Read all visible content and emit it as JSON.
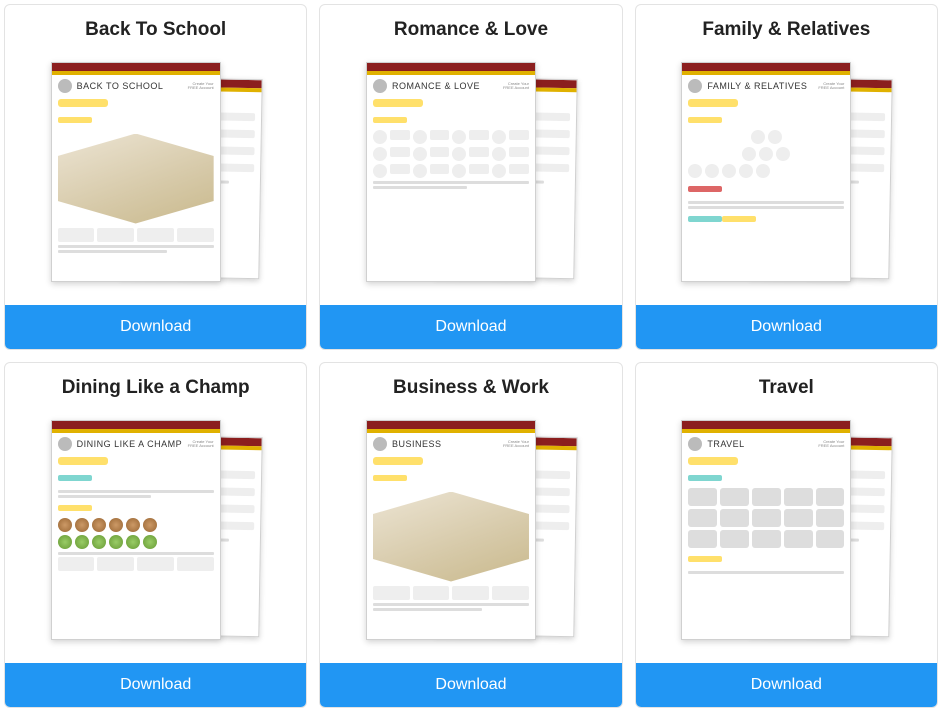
{
  "colors": {
    "button_bg": "#2196f3",
    "button_text": "#ffffff",
    "card_border": "#e3e3e3",
    "page_topbar": "#8b1e1e",
    "page_goldbar": "#e0b100",
    "highlight_yellow": "#ffe06b",
    "highlight_teal": "#7fd6d0"
  },
  "button_label": "Download",
  "cards": [
    {
      "title": "Back To School",
      "sheet_title": "BACK TO SCHOOL",
      "layout": "iso"
    },
    {
      "title": "Romance & Love",
      "sheet_title": "ROMANCE & LOVE",
      "layout": "faces"
    },
    {
      "title": "Family & Relatives",
      "sheet_title": "FAMILY & RELATIVES",
      "layout": "tree"
    },
    {
      "title": "Dining Like a Champ",
      "sheet_title": "DINING LIKE A CHAMP",
      "layout": "food"
    },
    {
      "title": "Business & Work",
      "sheet_title": "BUSINESS",
      "layout": "iso"
    },
    {
      "title": "Travel",
      "sheet_title": "TRAVEL",
      "layout": "grid"
    }
  ]
}
